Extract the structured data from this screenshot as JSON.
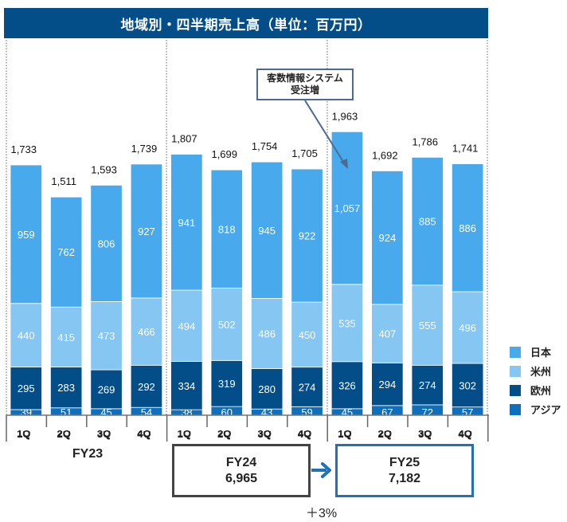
{
  "header": {
    "title": "地域別・四半期売上高（単位：百万円）"
  },
  "chart_data": {
    "type": "bar",
    "stacked": true,
    "title": "地域別・四半期売上高（単位：百万円）",
    "unit": "百万円",
    "xlabel": "",
    "ylabel": "",
    "ylim": [
      0,
      2000
    ],
    "grid": false,
    "legend_position": "right",
    "categories": [
      "1Q",
      "2Q",
      "3Q",
      "4Q",
      "1Q",
      "2Q",
      "3Q",
      "4Q",
      "1Q",
      "2Q",
      "3Q",
      "4Q"
    ],
    "fiscal_years": [
      {
        "label": "FY23",
        "quarters": 4
      },
      {
        "label": "FY24",
        "quarters": 4
      },
      {
        "label": "FY25",
        "quarters": 4
      }
    ],
    "series": [
      {
        "name": "アジア",
        "color": "#0e6fbd",
        "values": [
          39,
          51,
          45,
          54,
          38,
          60,
          43,
          59,
          45,
          67,
          72,
          57
        ]
      },
      {
        "name": "欧州",
        "color": "#034d88",
        "values": [
          295,
          283,
          269,
          292,
          334,
          319,
          280,
          274,
          326,
          294,
          274,
          302
        ]
      },
      {
        "name": "米州",
        "color": "#85c6f2",
        "values": [
          440,
          415,
          473,
          466,
          494,
          502,
          486,
          450,
          535,
          407,
          555,
          496
        ]
      },
      {
        "name": "日本",
        "color": "#48a9ec",
        "values": [
          959,
          762,
          806,
          927,
          941,
          818,
          945,
          922,
          1057,
          924,
          885,
          886
        ]
      }
    ],
    "totals": [
      "1,733",
      "1,511",
      "1,593",
      "1,739",
      "1,807",
      "1,699",
      "1,754",
      "1,705",
      "1,963",
      "1,692",
      "1,786",
      "1,741"
    ],
    "segment_labels": {
      "アジア": [
        "39",
        "51",
        "45",
        "54",
        "38",
        "60",
        "43",
        "59",
        "45",
        "67",
        "72",
        "57"
      ],
      "欧州": [
        "295",
        "283",
        "269",
        "292",
        "334",
        "319",
        "280",
        "274",
        "326",
        "294",
        "274",
        "302"
      ],
      "米州": [
        "440",
        "415",
        "473",
        "466",
        "494",
        "502",
        "486",
        "450",
        "535",
        "407",
        "555",
        "496"
      ],
      "日本": [
        "959",
        "762",
        "806",
        "927",
        "941",
        "818",
        "945",
        "922",
        "1,057",
        "924",
        "885",
        "886"
      ]
    },
    "annotations": [
      {
        "text_line1": "客数情報システム",
        "text_line2": "受注増",
        "target_category_index": 8
      }
    ]
  },
  "legend": [
    {
      "label": "日本",
      "color": "#48a9ec"
    },
    {
      "label": "米州",
      "color": "#85c6f2"
    },
    {
      "label": "欧州",
      "color": "#034d88"
    },
    {
      "label": "アジア",
      "color": "#0e6fbd"
    }
  ],
  "summary": {
    "fy23_label": "FY23",
    "fy24": {
      "label": "FY24",
      "value": "6,965"
    },
    "fy25": {
      "label": "FY25",
      "value": "7,182"
    },
    "growth": "＋3%"
  },
  "callout": {
    "line1": "客数情報システム",
    "line2": "受注増"
  }
}
